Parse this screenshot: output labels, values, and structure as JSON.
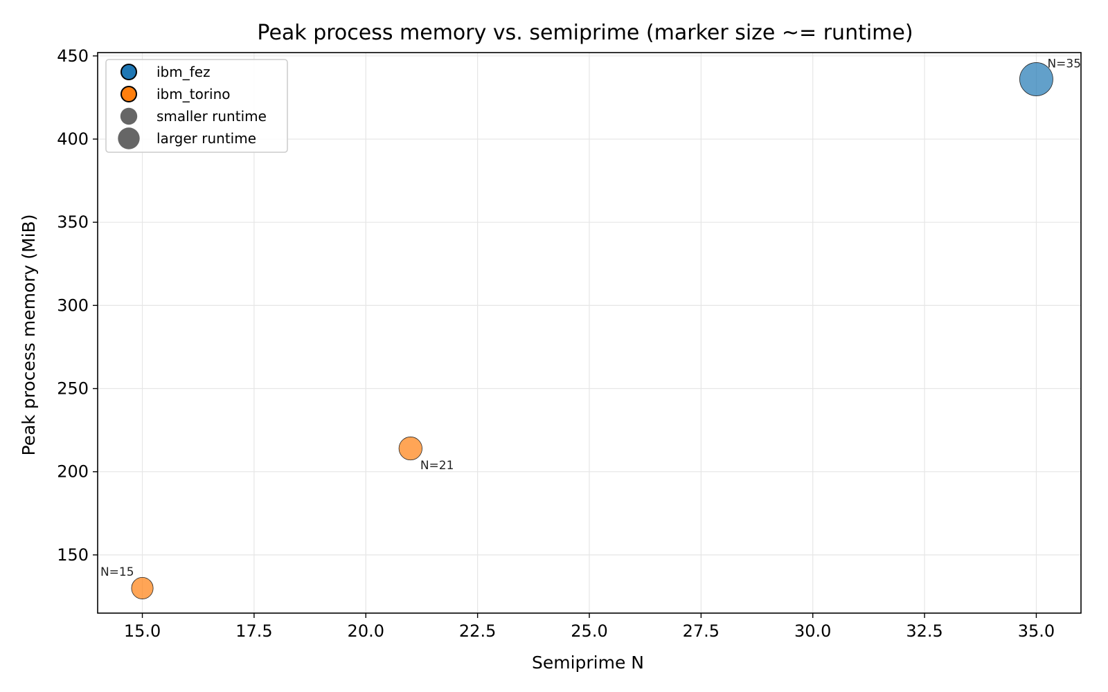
{
  "chart_data": {
    "type": "scatter",
    "title": "Peak process memory vs. semiprime (marker size ~= runtime)",
    "xlabel": "Semiprime N",
    "ylabel": "Peak process memory (MiB)",
    "xlim": [
      14.0,
      36.0
    ],
    "ylim": [
      115,
      452
    ],
    "xticks": [
      15.0,
      17.5,
      20.0,
      22.5,
      25.0,
      27.5,
      30.0,
      32.5,
      35.0
    ],
    "xtick_labels": [
      "15.0",
      "17.5",
      "20.0",
      "22.5",
      "25.0",
      "27.5",
      "30.0",
      "32.5",
      "35.0"
    ],
    "yticks": [
      150,
      200,
      250,
      300,
      350,
      400,
      450
    ],
    "ytick_labels": [
      "150",
      "200",
      "250",
      "300",
      "350",
      "400",
      "450"
    ],
    "grid": true,
    "legend_position": "top-left",
    "series": [
      {
        "name": "ibm_fez",
        "color": "#1f77b4",
        "points": [
          {
            "x": 35,
            "y": 436,
            "runtime_rel": 1.0,
            "label": "N=35"
          }
        ]
      },
      {
        "name": "ibm_torino",
        "color": "#ff7f0e",
        "points": [
          {
            "x": 15,
            "y": 130,
            "runtime_rel": 0.4,
            "label": "N=15"
          },
          {
            "x": 21,
            "y": 214,
            "runtime_rel": 0.48,
            "label": "N=21"
          }
        ]
      }
    ],
    "size_legend": [
      {
        "label": "smaller runtime",
        "runtime_rel": 0.3
      },
      {
        "label": "larger runtime",
        "runtime_rel": 0.55
      }
    ],
    "size_legend_color": "#666666"
  }
}
